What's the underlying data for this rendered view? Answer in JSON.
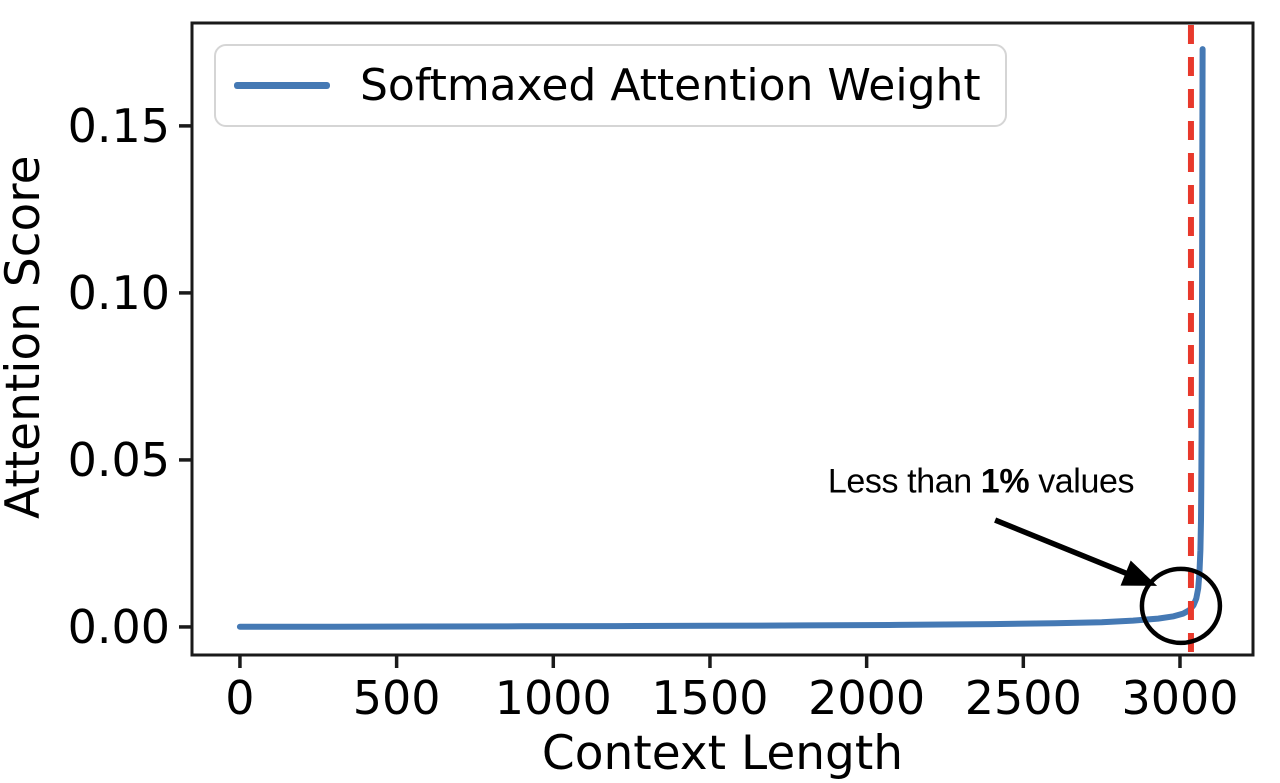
{
  "chart_data": {
    "type": "line",
    "title": "",
    "xlabel": "Context Length",
    "ylabel": "Attention Score",
    "grid": false,
    "xlim": [
      -153,
      3233
    ],
    "ylim": [
      -0.0084,
      0.1808
    ],
    "x_ticks": [
      {
        "value": 0,
        "label": "0"
      },
      {
        "value": 500,
        "label": "500"
      },
      {
        "value": 1000,
        "label": "1000"
      },
      {
        "value": 1500,
        "label": "1500"
      },
      {
        "value": 2000,
        "label": "2000"
      },
      {
        "value": 2500,
        "label": "2500"
      },
      {
        "value": 3000,
        "label": "3000"
      }
    ],
    "y_ticks": [
      {
        "value": 0.0,
        "label": "0.00"
      },
      {
        "value": 0.05,
        "label": "0.05"
      },
      {
        "value": 0.1,
        "label": "0.10"
      },
      {
        "value": 0.15,
        "label": "0.15"
      }
    ],
    "legend": {
      "position": "upper left",
      "entries": [
        {
          "label": "Softmaxed Attention Weight",
          "color": "#4579b4"
        }
      ]
    },
    "series": [
      {
        "name": "Softmaxed Attention Weight",
        "color": "#4579b4",
        "line_width": 6,
        "points": [
          [
            0,
            5e-05
          ],
          [
            300,
            8e-05
          ],
          [
            600,
            0.00012
          ],
          [
            900,
            0.00018
          ],
          [
            1200,
            0.00025
          ],
          [
            1500,
            0.00034
          ],
          [
            1800,
            0.00045
          ],
          [
            2100,
            0.0006
          ],
          [
            2400,
            0.00085
          ],
          [
            2600,
            0.0011
          ],
          [
            2750,
            0.0014
          ],
          [
            2850,
            0.0019
          ],
          [
            2930,
            0.0025
          ],
          [
            2980,
            0.0032
          ],
          [
            3010,
            0.004
          ],
          [
            3030,
            0.005
          ],
          [
            3043,
            0.0065
          ],
          [
            3052,
            0.0085
          ],
          [
            3058,
            0.0115
          ],
          [
            3062,
            0.016
          ],
          [
            3065,
            0.023
          ],
          [
            3067,
            0.032
          ],
          [
            3068,
            0.042
          ],
          [
            3069,
            0.058
          ],
          [
            3070,
            0.082
          ],
          [
            3071,
            0.12
          ],
          [
            3071.5,
            0.15
          ],
          [
            3072,
            0.173
          ]
        ]
      }
    ],
    "vline": {
      "x": 3035,
      "color": "#e8392c",
      "style": "dashed",
      "line_width": 6
    },
    "annotation": {
      "prefix": "Less than ",
      "bold": "1%",
      "suffix": " values",
      "text_center": [
        2365,
        0.0434
      ],
      "arrow_tail": [
        2410,
        0.032
      ],
      "arrow_tip": [
        2927,
        0.0123
      ],
      "circle_center": [
        3003,
        0.0063
      ],
      "color": "#000000"
    },
    "frame_color": "#1a1a1a"
  }
}
